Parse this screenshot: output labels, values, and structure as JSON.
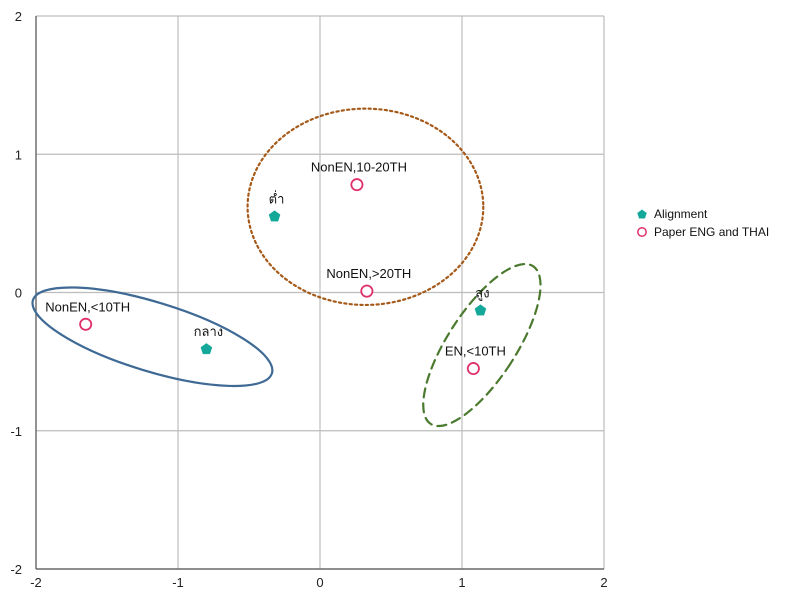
{
  "chart_data": {
    "type": "scatter",
    "title": "",
    "xlabel": "",
    "ylabel": "",
    "xlim": [
      -2,
      2
    ],
    "ylim": [
      -2,
      2
    ],
    "xticks": [
      -2,
      -1,
      0,
      1,
      2
    ],
    "yticks": [
      2,
      1,
      0,
      -1,
      -2
    ],
    "grid": true,
    "legend_position": "right",
    "series": [
      {
        "name": "Alignment",
        "marker": "pentagon-filled",
        "color": "#14a89a",
        "points": [
          {
            "label": "ต่ำ",
            "x": -0.32,
            "y": 0.55
          },
          {
            "label": "กลาง",
            "x": -0.8,
            "y": -0.41
          },
          {
            "label": "สูง",
            "x": 1.13,
            "y": -0.13
          }
        ]
      },
      {
        "name": "Paper ENG and THAI",
        "marker": "circle-open",
        "color": "#e0306a",
        "points": [
          {
            "label": "NonEN,10-20TH",
            "x": 0.26,
            "y": 0.78
          },
          {
            "label": "NonEN,>20TH",
            "x": 0.33,
            "y": 0.01
          },
          {
            "label": "NonEN,<10TH",
            "x": -1.65,
            "y": -0.23
          },
          {
            "label": "EN,<10TH",
            "x": 1.08,
            "y": -0.55
          }
        ]
      }
    ],
    "annotations": [
      {
        "shape": "ellipse",
        "style": "solid",
        "color": "#3f6a95",
        "cx": -1.18,
        "cy": -0.32,
        "rx": 0.88,
        "ry": 0.25,
        "angle_deg": 17
      },
      {
        "shape": "ellipse",
        "style": "dotted",
        "color": "#a65a1a",
        "cx": 0.32,
        "cy": 0.62,
        "rx": 0.83,
        "ry": 0.71,
        "angle_deg": 0
      },
      {
        "shape": "ellipse",
        "style": "dashed",
        "color": "#4b7a2e",
        "cx": 1.14,
        "cy": -0.38,
        "rx": 0.24,
        "ry": 0.68,
        "angle_deg": 33
      }
    ]
  }
}
